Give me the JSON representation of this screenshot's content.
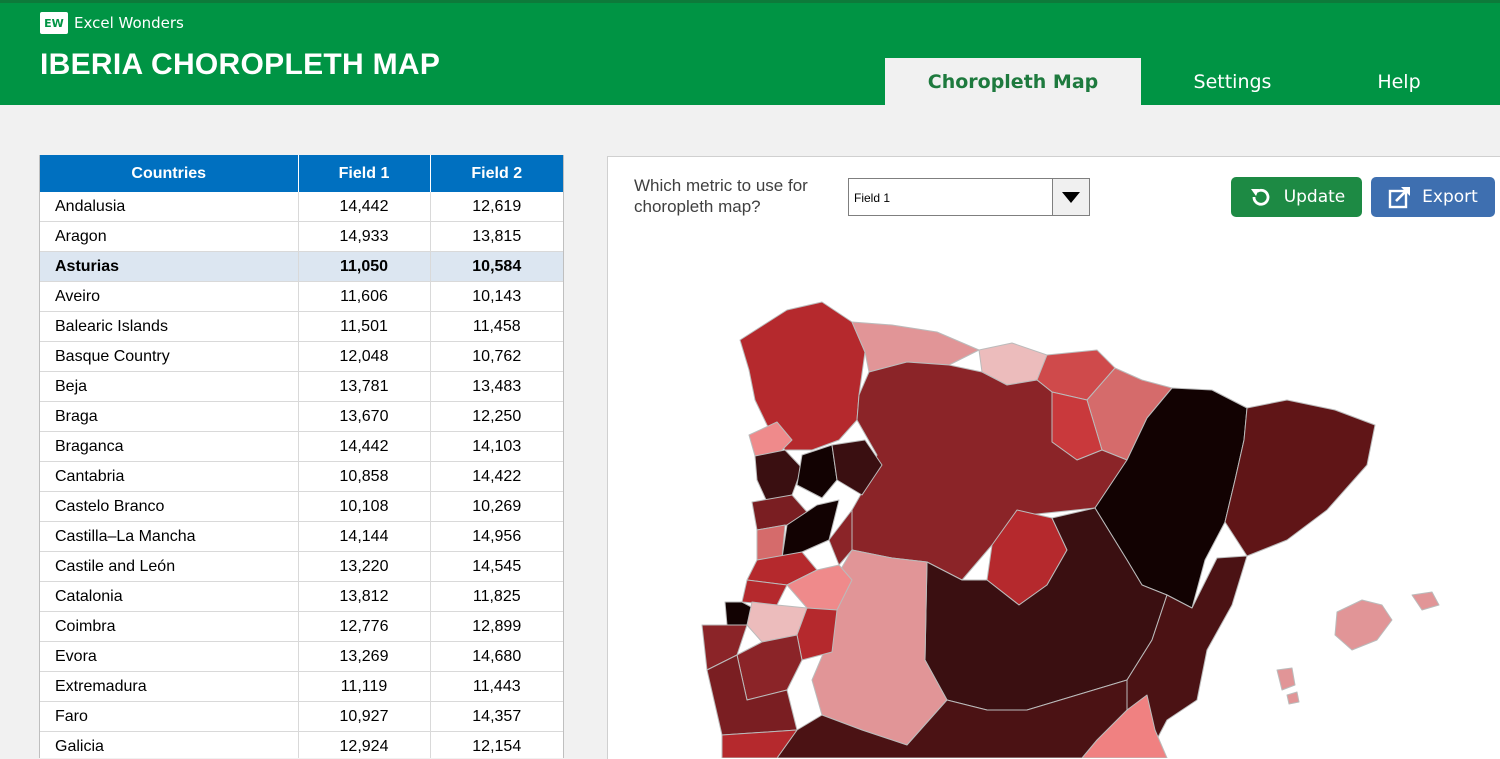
{
  "brand": {
    "name": "Excel Wonders",
    "logo_text": "EW"
  },
  "app": {
    "title": "IBERIA CHOROPLETH MAP"
  },
  "tabs": [
    {
      "label": "Choropleth Map",
      "active": true
    },
    {
      "label": "Settings",
      "active": false
    },
    {
      "label": "Help",
      "active": false
    }
  ],
  "table": {
    "headers": [
      "Countries",
      "Field 1",
      "Field 2"
    ],
    "selected_row": "Asturias",
    "rows": [
      {
        "name": "Andalusia",
        "f1": "14,442",
        "f2": "12,619"
      },
      {
        "name": "Aragon",
        "f1": "14,933",
        "f2": "13,815"
      },
      {
        "name": "Asturias",
        "f1": "11,050",
        "f2": "10,584"
      },
      {
        "name": "Aveiro",
        "f1": "11,606",
        "f2": "10,143"
      },
      {
        "name": "Balearic Islands",
        "f1": "11,501",
        "f2": "11,458"
      },
      {
        "name": "Basque Country",
        "f1": "12,048",
        "f2": "10,762"
      },
      {
        "name": "Beja",
        "f1": "13,781",
        "f2": "13,483"
      },
      {
        "name": "Braga",
        "f1": "13,670",
        "f2": "12,250"
      },
      {
        "name": "Braganca",
        "f1": "14,442",
        "f2": "14,103"
      },
      {
        "name": "Cantabria",
        "f1": "10,858",
        "f2": "14,422"
      },
      {
        "name": "Castelo Branco",
        "f1": "10,108",
        "f2": "10,269"
      },
      {
        "name": "Castilla–La Mancha",
        "f1": "14,144",
        "f2": "14,956"
      },
      {
        "name": "Castile and León",
        "f1": "13,220",
        "f2": "14,545"
      },
      {
        "name": "Catalonia",
        "f1": "13,812",
        "f2": "11,825"
      },
      {
        "name": "Coimbra",
        "f1": "12,776",
        "f2": "12,899"
      },
      {
        "name": "Evora",
        "f1": "13,269",
        "f2": "14,680"
      },
      {
        "name": "Extremadura",
        "f1": "11,119",
        "f2": "11,443"
      },
      {
        "name": "Faro",
        "f1": "10,927",
        "f2": "14,357"
      },
      {
        "name": "Galicia",
        "f1": "12,924",
        "f2": "12,154"
      }
    ]
  },
  "controls": {
    "metric_label": "Which metric to use for choropleth map?",
    "metric_value": "Field 1",
    "update_label": "Update",
    "export_label": "Export"
  },
  "colors": {
    "header_green": "#009444",
    "table_header_blue": "#0070c0",
    "update_button": "#1d8a44",
    "export_button": "#3e6fb0",
    "selected_row": "#dce6f1"
  }
}
